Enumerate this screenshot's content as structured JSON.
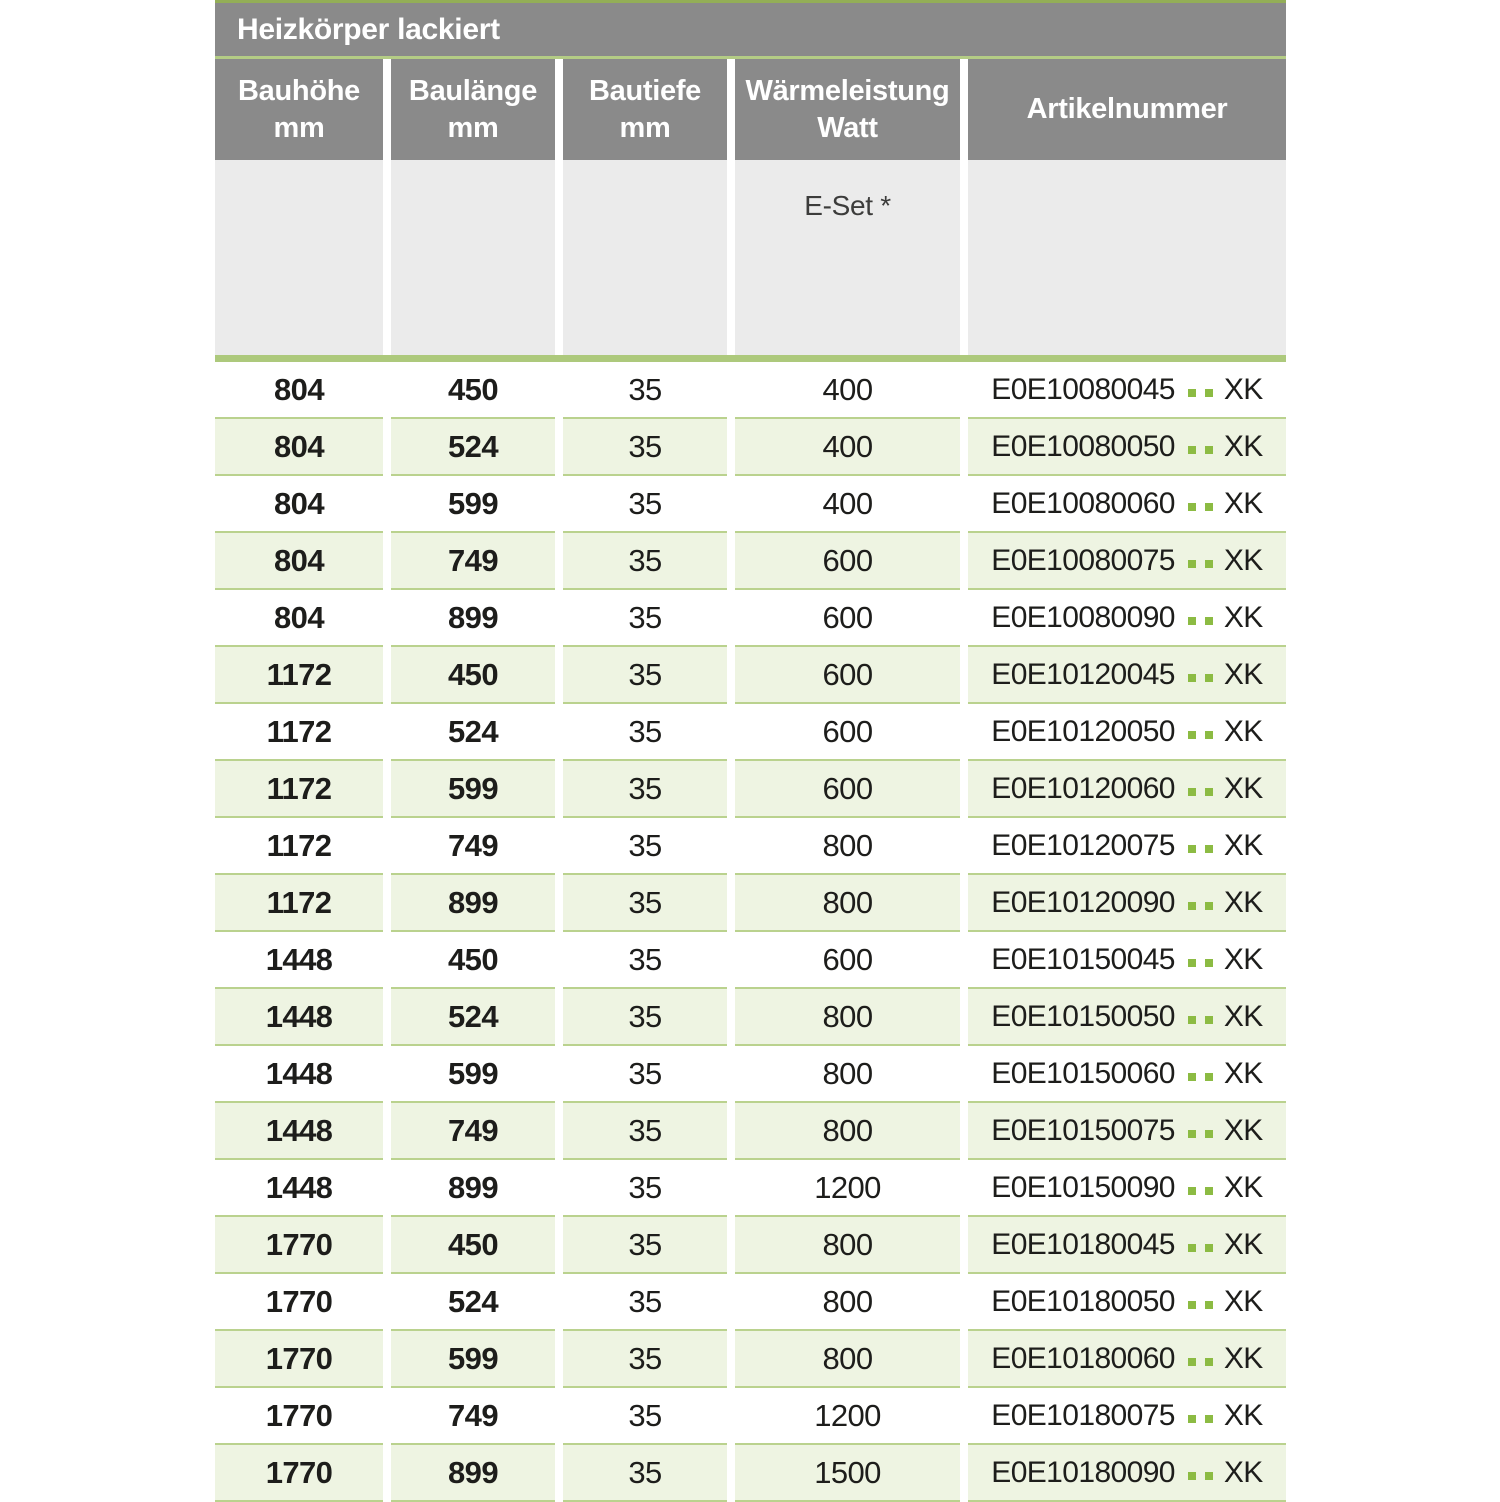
{
  "table": {
    "title": "Heizkörper lackiert",
    "columns": [
      {
        "line1": "Bauhöhe",
        "line2": "mm"
      },
      {
        "line1": "Baulänge",
        "line2": "mm"
      },
      {
        "line1": "Bautiefe",
        "line2": "mm"
      },
      {
        "line1": "Wärmeleistung",
        "line2": "Watt"
      },
      {
        "line1": "Artikelnummer",
        "line2": ""
      }
    ],
    "subheader_note": "E-Set *",
    "rows": [
      {
        "bauhoehe": "804",
        "baulaenge": "450",
        "bautiefe": "35",
        "watt": "400",
        "artikel": "E0E10080045",
        "suffix": "XK"
      },
      {
        "bauhoehe": "804",
        "baulaenge": "524",
        "bautiefe": "35",
        "watt": "400",
        "artikel": "E0E10080050",
        "suffix": "XK"
      },
      {
        "bauhoehe": "804",
        "baulaenge": "599",
        "bautiefe": "35",
        "watt": "400",
        "artikel": "E0E10080060",
        "suffix": "XK"
      },
      {
        "bauhoehe": "804",
        "baulaenge": "749",
        "bautiefe": "35",
        "watt": "600",
        "artikel": "E0E10080075",
        "suffix": "XK"
      },
      {
        "bauhoehe": "804",
        "baulaenge": "899",
        "bautiefe": "35",
        "watt": "600",
        "artikel": "E0E10080090",
        "suffix": "XK"
      },
      {
        "bauhoehe": "1172",
        "baulaenge": "450",
        "bautiefe": "35",
        "watt": "600",
        "artikel": "E0E10120045",
        "suffix": "XK"
      },
      {
        "bauhoehe": "1172",
        "baulaenge": "524",
        "bautiefe": "35",
        "watt": "600",
        "artikel": "E0E10120050",
        "suffix": "XK"
      },
      {
        "bauhoehe": "1172",
        "baulaenge": "599",
        "bautiefe": "35",
        "watt": "600",
        "artikel": "E0E10120060",
        "suffix": "XK"
      },
      {
        "bauhoehe": "1172",
        "baulaenge": "749",
        "bautiefe": "35",
        "watt": "800",
        "artikel": "E0E10120075",
        "suffix": "XK"
      },
      {
        "bauhoehe": "1172",
        "baulaenge": "899",
        "bautiefe": "35",
        "watt": "800",
        "artikel": "E0E10120090",
        "suffix": "XK"
      },
      {
        "bauhoehe": "1448",
        "baulaenge": "450",
        "bautiefe": "35",
        "watt": "600",
        "artikel": "E0E10150045",
        "suffix": "XK"
      },
      {
        "bauhoehe": "1448",
        "baulaenge": "524",
        "bautiefe": "35",
        "watt": "800",
        "artikel": "E0E10150050",
        "suffix": "XK"
      },
      {
        "bauhoehe": "1448",
        "baulaenge": "599",
        "bautiefe": "35",
        "watt": "800",
        "artikel": "E0E10150060",
        "suffix": "XK"
      },
      {
        "bauhoehe": "1448",
        "baulaenge": "749",
        "bautiefe": "35",
        "watt": "800",
        "artikel": "E0E10150075",
        "suffix": "XK"
      },
      {
        "bauhoehe": "1448",
        "baulaenge": "899",
        "bautiefe": "35",
        "watt": "1200",
        "artikel": "E0E10150090",
        "suffix": "XK"
      },
      {
        "bauhoehe": "1770",
        "baulaenge": "450",
        "bautiefe": "35",
        "watt": "800",
        "artikel": "E0E10180045",
        "suffix": "XK"
      },
      {
        "bauhoehe": "1770",
        "baulaenge": "524",
        "bautiefe": "35",
        "watt": "800",
        "artikel": "E0E10180050",
        "suffix": "XK"
      },
      {
        "bauhoehe": "1770",
        "baulaenge": "599",
        "bautiefe": "35",
        "watt": "800",
        "artikel": "E0E10180060",
        "suffix": "XK"
      },
      {
        "bauhoehe": "1770",
        "baulaenge": "749",
        "bautiefe": "35",
        "watt": "1200",
        "artikel": "E0E10180075",
        "suffix": "XK"
      },
      {
        "bauhoehe": "1770",
        "baulaenge": "899",
        "bautiefe": "35",
        "watt": "1500",
        "artikel": "E0E10180090",
        "suffix": "XK"
      }
    ]
  },
  "colors": {
    "header_gray": "#8a8a8a",
    "subheader_gray": "#ebebeb",
    "accent_green": "#adc97c",
    "row_tint_green": "#eef4e2",
    "row_border_green": "#bad28e",
    "dot_green": "#8cbb43",
    "text_dark": "#1d1d1b"
  }
}
